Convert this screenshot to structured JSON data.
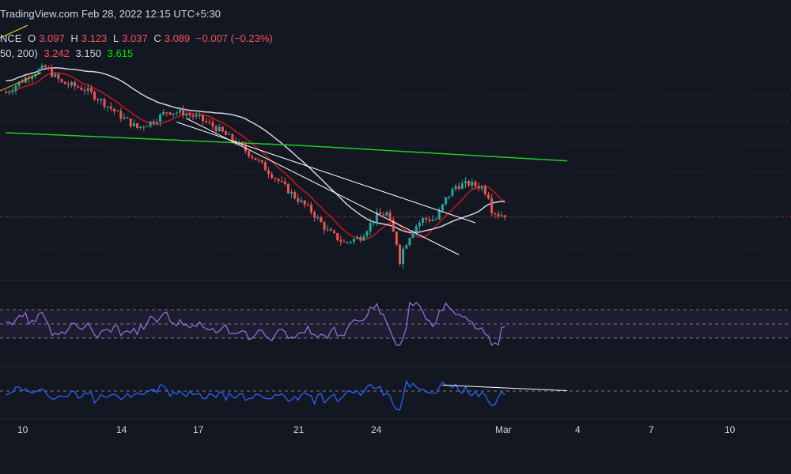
{
  "header": {
    "source": "TradingView.com",
    "timestamp": "Feb 28, 2022 12:15 UTC+5:30"
  },
  "ohlc": {
    "symbol_fragment": "NCE",
    "o_label": "O",
    "o": "3.097",
    "h_label": "H",
    "h": "3.123",
    "l_label": "L",
    "l": "3.037",
    "c_label": "C",
    "c": "3.089",
    "change": "−0.007 (−0.23%)"
  },
  "ma_legend": {
    "params": "50, 200)",
    "ma20": "3.242",
    "ma50": "3.150",
    "ma200": "3.615"
  },
  "colors": {
    "background": "#131722",
    "up": "#26a69a",
    "down": "#ef5350",
    "ma20": "#c2181b",
    "ma50": "#d1d4dc",
    "ma200": "#1fd01f",
    "rsi": "#8f6dd3",
    "osc": "#2962ff",
    "grid": "#2a2e39"
  },
  "x_ticks": [
    "10",
    "14",
    "17",
    "21",
    "24",
    "Mar",
    "4",
    "7",
    "10"
  ],
  "chart_data": [
    {
      "type": "candlestick",
      "title": "",
      "ylim": [
        2.6,
        4.4
      ],
      "x_range": [
        0,
        170
      ],
      "series": [
        {
          "kind": "ohlc",
          "data": []
        },
        {
          "kind": "ma",
          "period": 20,
          "color": "#c2181b",
          "values": []
        },
        {
          "kind": "ma",
          "period": 50,
          "color": "#d1d4dc",
          "values": []
        },
        {
          "kind": "ma",
          "period": 200,
          "color": "#1fd01f",
          "values": []
        }
      ],
      "trendlines": [
        {
          "from": [
            55,
            3.9
          ],
          "to": [
            138,
            2.75
          ]
        },
        {
          "from": [
            52,
            3.87
          ],
          "to": [
            143,
            3.02
          ]
        }
      ]
    },
    {
      "type": "line",
      "name": "RSI",
      "ylim": [
        0,
        100
      ],
      "bands": [
        70,
        30
      ],
      "values": []
    },
    {
      "type": "line",
      "name": "oscillator",
      "ylim": [
        -1,
        1
      ],
      "values": [],
      "trendline": {
        "from": [
          133,
          0.3
        ],
        "to": [
          171,
          0.02
        ]
      }
    }
  ]
}
